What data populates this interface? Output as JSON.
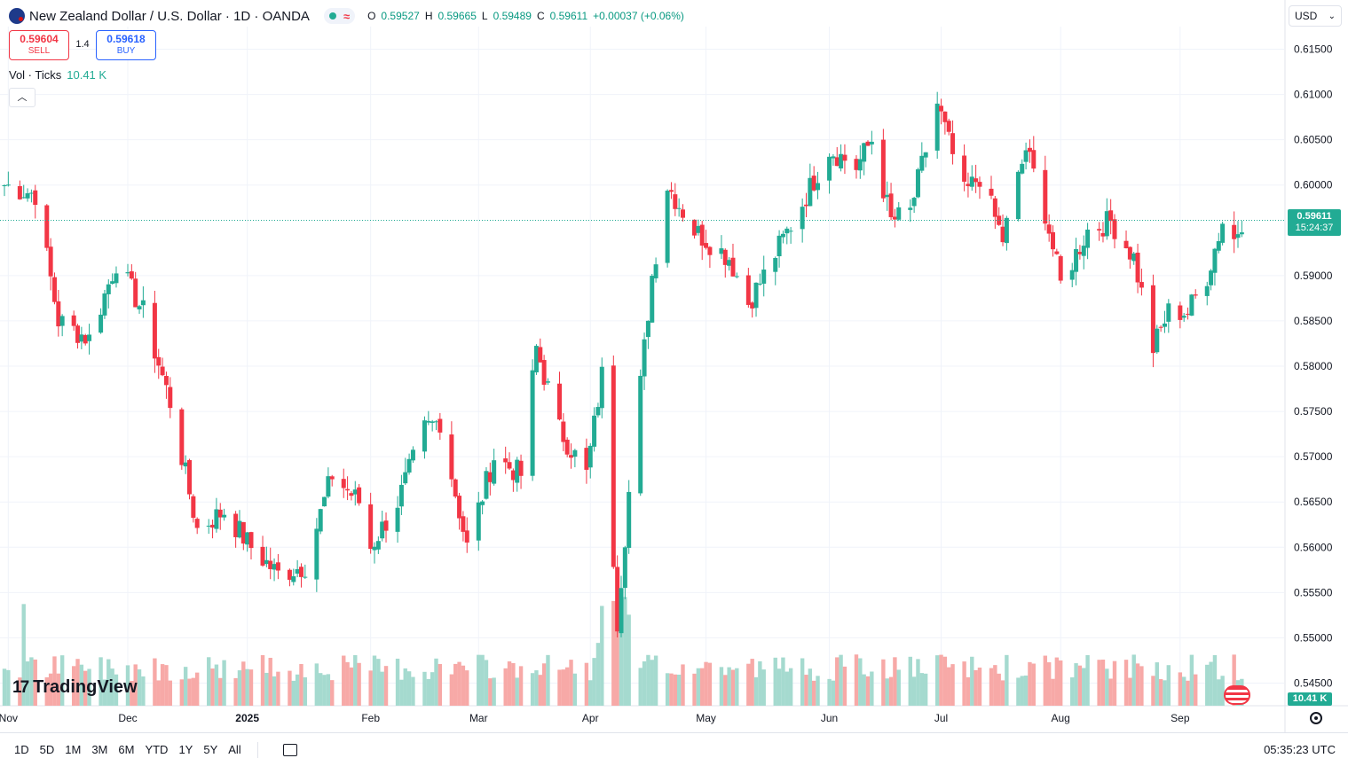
{
  "header": {
    "symbol_title": "New Zealand Dollar / U.S. Dollar · 1D · OANDA",
    "ohlc": [
      {
        "label": "O",
        "value": "0.59527"
      },
      {
        "label": "H",
        "value": "0.59665"
      },
      {
        "label": "L",
        "value": "0.59489"
      },
      {
        "label": "C",
        "value": "0.59611"
      }
    ],
    "change": "+0.00037 (+0.06%)"
  },
  "trade": {
    "sell_price": "0.59604",
    "sell_label": "SELL",
    "spread": "1.4",
    "buy_price": "0.59618",
    "buy_label": "BUY"
  },
  "volume_legend": {
    "label": "Vol · Ticks",
    "value": "10.41 K"
  },
  "currency_select": "USD",
  "last_price_tag": {
    "price": "0.59611",
    "countdown": "15:24:37"
  },
  "volume_tag": "10.41 K",
  "brand": "TradingView",
  "time_ranges": [
    "1D",
    "5D",
    "1M",
    "3M",
    "6M",
    "YTD",
    "1Y",
    "5Y",
    "All"
  ],
  "clock": "05:35:23 UTC",
  "colors": {
    "up": "#22ab94",
    "down": "#f23645",
    "vol_up": "#a5dacf",
    "vol_down": "#f7a9a7"
  },
  "icons": [
    "nz-flag-icon",
    "search-icon",
    "chevron-down-icon",
    "chevron-up-icon",
    "calendar-range-icon",
    "gear-icon",
    "us-flag-icon",
    "tradingview-logo-icon"
  ],
  "chart_data": {
    "type": "candlestick",
    "title": "New Zealand Dollar / U.S. Dollar · 1D · OANDA",
    "x_tick_labels": [
      "Nov",
      "Dec",
      "2025",
      "Feb",
      "Mar",
      "Apr",
      "May",
      "Jun",
      "Jul",
      "Aug",
      "Sep"
    ],
    "y_tick_labels": [
      "0.61500",
      "0.61000",
      "0.60500",
      "0.60000",
      "0.59000",
      "0.58500",
      "0.58000",
      "0.57500",
      "0.57000",
      "0.56500",
      "0.56000",
      "0.55500",
      "0.55000",
      "0.54500"
    ],
    "ylim": [
      0.5425,
      0.6175
    ],
    "last_price": 0.59611,
    "grid": true,
    "anchors": [
      {
        "date": "2024-10-31",
        "close": 0.6
      },
      {
        "date": "2024-11-08",
        "close": 0.599
      },
      {
        "date": "2024-11-14",
        "close": 0.585
      },
      {
        "date": "2024-11-22",
        "close": 0.583
      },
      {
        "date": "2024-11-29",
        "close": 0.5915
      },
      {
        "date": "2024-12-06",
        "close": 0.586
      },
      {
        "date": "2024-12-13",
        "close": 0.576
      },
      {
        "date": "2024-12-20",
        "close": 0.562
      },
      {
        "date": "2024-12-27",
        "close": 0.564
      },
      {
        "date": "2025-01-03",
        "close": 0.56
      },
      {
        "date": "2025-01-10",
        "close": 0.557
      },
      {
        "date": "2025-01-17",
        "close": 0.558
      },
      {
        "date": "2025-01-24",
        "close": 0.568
      },
      {
        "date": "2025-01-31",
        "close": 0.565
      },
      {
        "date": "2025-02-03",
        "close": 0.56
      },
      {
        "date": "2025-02-10",
        "close": 0.565
      },
      {
        "date": "2025-02-17",
        "close": 0.573
      },
      {
        "date": "2025-02-21",
        "close": 0.574
      },
      {
        "date": "2025-02-28",
        "close": 0.56
      },
      {
        "date": "2025-03-07",
        "close": 0.57
      },
      {
        "date": "2025-03-14",
        "close": 0.568
      },
      {
        "date": "2025-03-18",
        "close": 0.582
      },
      {
        "date": "2025-03-24",
        "close": 0.573
      },
      {
        "date": "2025-03-31",
        "close": 0.568
      },
      {
        "date": "2025-04-04",
        "close": 0.579
      },
      {
        "date": "2025-04-08",
        "close": 0.552
      },
      {
        "date": "2025-04-11",
        "close": 0.566
      },
      {
        "date": "2025-04-17",
        "close": 0.59
      },
      {
        "date": "2025-04-21",
        "close": 0.6
      },
      {
        "date": "2025-04-28",
        "close": 0.595
      },
      {
        "date": "2025-05-07",
        "close": 0.592
      },
      {
        "date": "2025-05-12",
        "close": 0.587
      },
      {
        "date": "2025-05-16",
        "close": 0.59
      },
      {
        "date": "2025-05-26",
        "close": 0.598
      },
      {
        "date": "2025-06-02",
        "close": 0.604
      },
      {
        "date": "2025-06-09",
        "close": 0.602
      },
      {
        "date": "2025-06-13",
        "close": 0.605
      },
      {
        "date": "2025-06-18",
        "close": 0.596
      },
      {
        "date": "2025-06-23",
        "close": 0.597
      },
      {
        "date": "2025-06-30",
        "close": 0.609
      },
      {
        "date": "2025-07-07",
        "close": 0.599
      },
      {
        "date": "2025-07-11",
        "close": 0.601
      },
      {
        "date": "2025-07-17",
        "close": 0.594
      },
      {
        "date": "2025-07-23",
        "close": 0.604
      },
      {
        "date": "2025-07-28",
        "close": 0.597
      },
      {
        "date": "2025-08-01",
        "close": 0.589
      },
      {
        "date": "2025-08-08",
        "close": 0.595
      },
      {
        "date": "2025-08-14",
        "close": 0.596
      },
      {
        "date": "2025-08-20",
        "close": 0.592
      },
      {
        "date": "2025-08-25",
        "close": 0.582
      },
      {
        "date": "2025-08-29",
        "close": 0.586
      },
      {
        "date": "2025-09-03",
        "close": 0.586
      },
      {
        "date": "2025-09-08",
        "close": 0.59
      },
      {
        "date": "2025-09-12",
        "close": 0.596
      },
      {
        "date": "2025-09-15",
        "close": 0.594
      },
      {
        "date": "2025-09-17",
        "close": 0.5961
      }
    ]
  }
}
